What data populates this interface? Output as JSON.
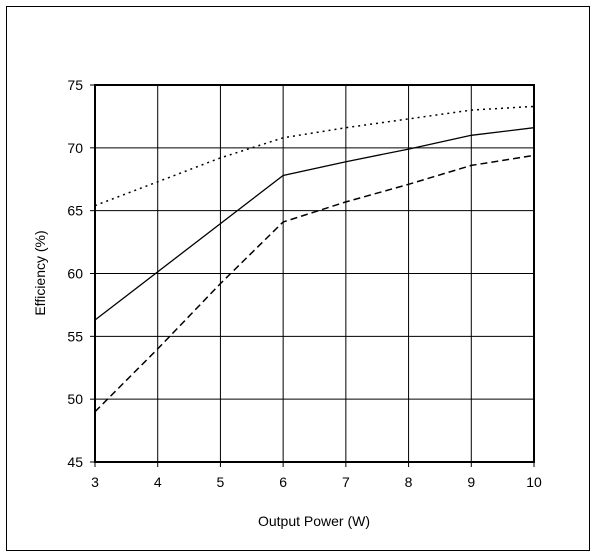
{
  "chart_data": {
    "type": "line",
    "title": "",
    "xlabel": "Output Power (W)",
    "ylabel": "Efficiency (%)",
    "xlim": [
      3,
      10
    ],
    "ylim": [
      45,
      75
    ],
    "x_ticks": [
      3,
      4,
      5,
      6,
      7,
      8,
      9,
      10
    ],
    "y_ticks": [
      45,
      50,
      55,
      60,
      65,
      70,
      75
    ],
    "grid": true,
    "legend": "none",
    "series": [
      {
        "style": "dotted",
        "color": "#000000",
        "x": [
          3,
          4,
          5,
          6,
          7,
          8,
          9,
          10
        ],
        "y": [
          65.4,
          67.3,
          69.2,
          70.8,
          71.6,
          72.3,
          73.0,
          73.3
        ]
      },
      {
        "style": "solid",
        "color": "#000000",
        "x": [
          3,
          6,
          7,
          8,
          9,
          10
        ],
        "y": [
          56.3,
          67.8,
          68.9,
          69.9,
          71.0,
          71.6
        ]
      },
      {
        "style": "dashed",
        "color": "#000000",
        "x": [
          3,
          4,
          5,
          6,
          7,
          8,
          9,
          10
        ],
        "y": [
          49.0,
          54.0,
          59.2,
          64.1,
          65.7,
          67.1,
          68.6,
          69.4
        ]
      }
    ]
  }
}
